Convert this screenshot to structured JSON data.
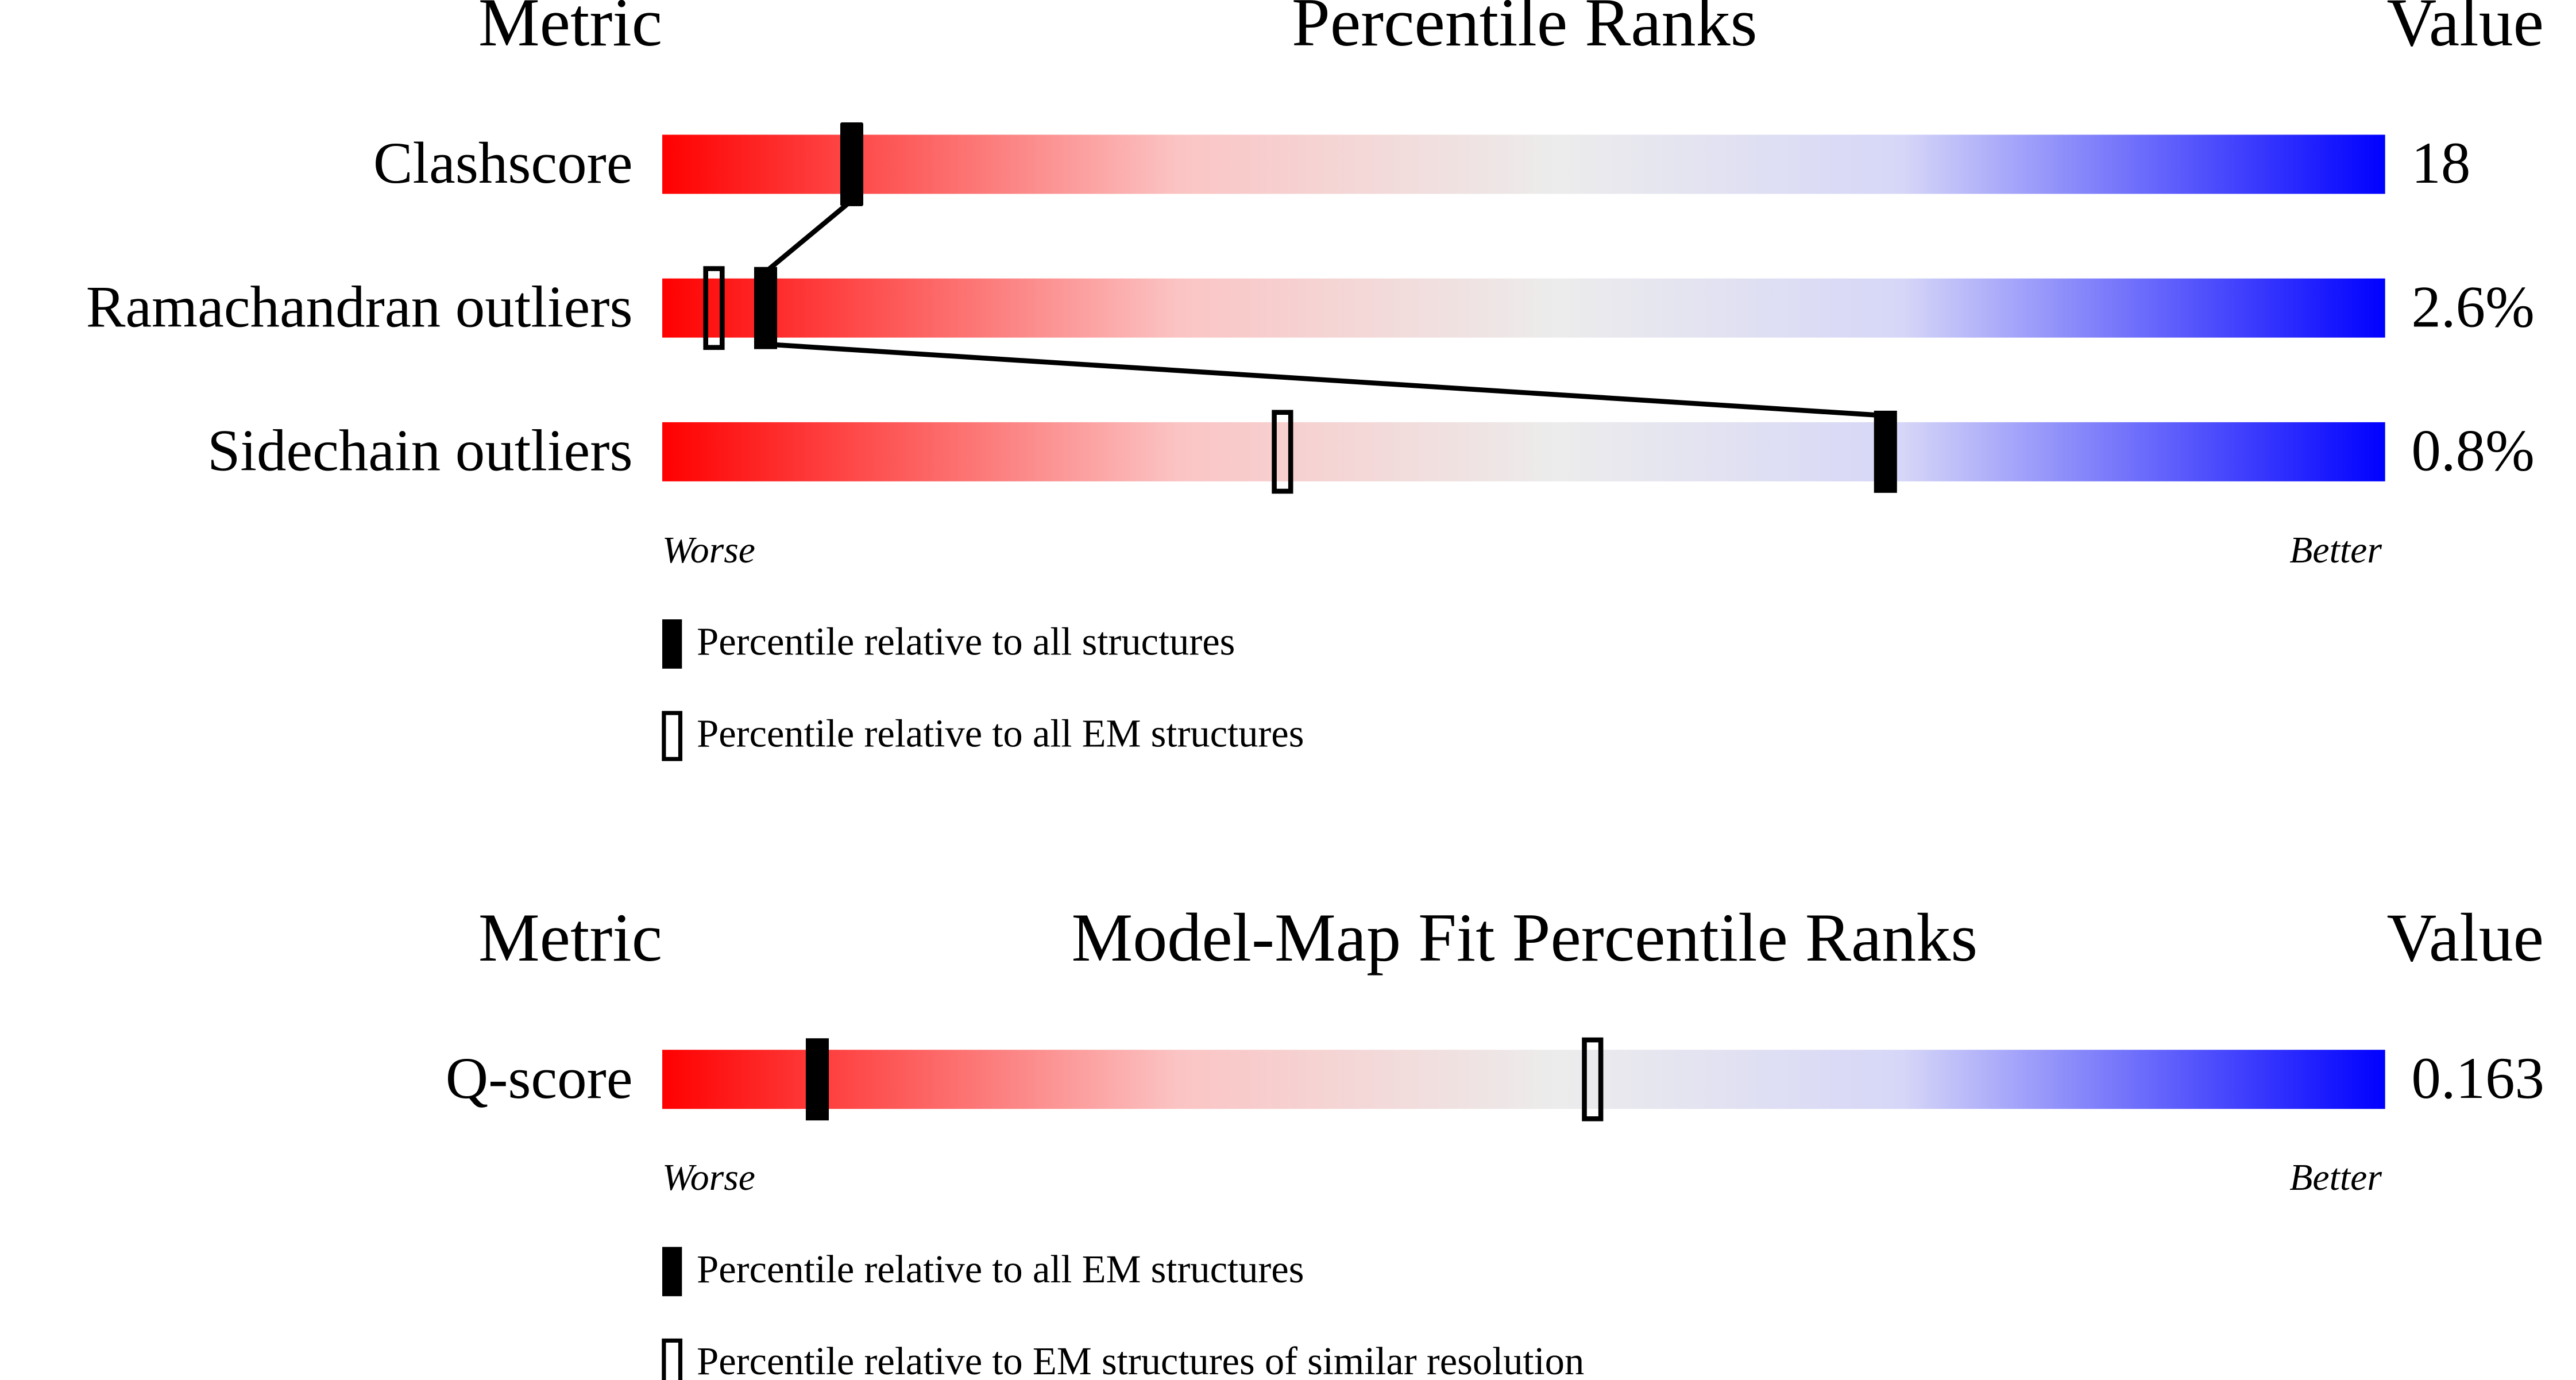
{
  "chart_data": [
    {
      "type": "slider",
      "headers": {
        "metric": "Metric",
        "title": "Percentile Ranks",
        "value": "Value"
      },
      "categories": [
        "Clashscore",
        "Ramachandran outliers",
        "Sidechain outliers"
      ],
      "metric_values": [
        "18",
        "2.6%",
        "0.8%"
      ],
      "xlim": [
        0,
        100
      ],
      "worse": "Worse",
      "better": "Better",
      "series": [
        {
          "name": "Percentile relative to all structures",
          "color": "#000000",
          "style": "filled",
          "connect": true,
          "values": [
            11,
            6,
            71
          ]
        },
        {
          "name": "Percentile relative to all EM structures",
          "color": "#000000",
          "style": "open",
          "connect": false,
          "values": [
            11,
            3,
            36
          ]
        }
      ]
    },
    {
      "type": "slider",
      "headers": {
        "metric": "Metric",
        "title": "Model-Map Fit Percentile Ranks",
        "value": "Value"
      },
      "categories": [
        "Q-score"
      ],
      "metric_values": [
        "0.163"
      ],
      "xlim": [
        0,
        100
      ],
      "worse": "Worse",
      "better": "Better",
      "series": [
        {
          "name": "Percentile relative to all EM structures",
          "color": "#000000",
          "style": "filled",
          "connect": true,
          "values": [
            9
          ]
        },
        {
          "name": "Percentile relative to EM structures of similar resolution",
          "color": "#000000",
          "style": "open",
          "connect": false,
          "values": [
            54
          ]
        }
      ]
    }
  ]
}
